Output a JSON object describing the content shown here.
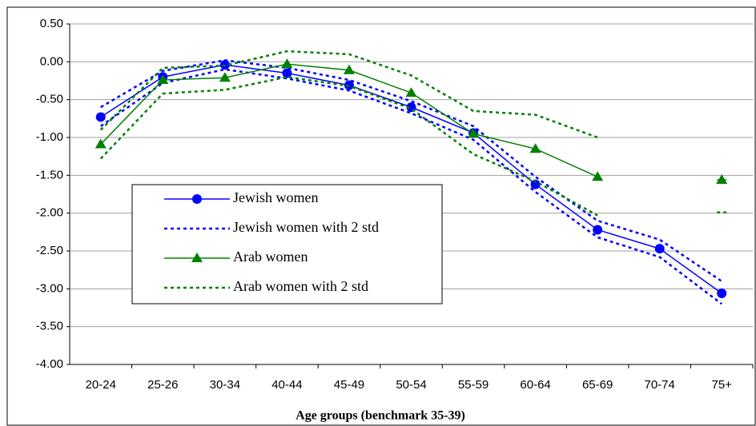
{
  "chart_data": {
    "type": "line",
    "x_label": "Age groups (benchmark 35-39)",
    "categories": [
      "20-24",
      "25-26",
      "30-34",
      "40-44",
      "45-49",
      "50-54",
      "55-59",
      "60-64",
      "65-69",
      "70-74",
      "75+"
    ],
    "series": [
      {
        "name": "Jewish women",
        "color": "#0000ff",
        "marker": "circle",
        "dash": false,
        "values": [
          -0.73,
          -0.2,
          -0.04,
          -0.15,
          -0.31,
          -0.6,
          -0.94,
          -1.62,
          -2.22,
          -2.47,
          -3.06
        ]
      },
      {
        "name": "Jewish women with 2 std",
        "color": "#0000ff",
        "marker": "none",
        "dash": true,
        "values": [
          -0.6,
          -0.12,
          0.02,
          -0.08,
          -0.24,
          -0.52,
          -0.85,
          -1.52,
          -2.1,
          -2.35,
          -2.9
        ]
      },
      {
        "color": "#0000ff",
        "marker": "none",
        "dash": true,
        "values": [
          -0.85,
          -0.28,
          -0.1,
          -0.22,
          -0.38,
          -0.68,
          -1.03,
          -1.72,
          -2.32,
          -2.58,
          -3.2
        ]
      },
      {
        "name": "Arab women",
        "color": "#008000",
        "marker": "triangle",
        "dash": false,
        "values": [
          -1.09,
          -0.24,
          -0.21,
          -0.03,
          -0.11,
          -0.41,
          -0.95,
          -1.15,
          -1.52,
          null,
          -1.56
        ]
      },
      {
        "name": "Arab women with 2 std",
        "color": "#008000",
        "marker": "none",
        "dash": true,
        "values": [
          -0.9,
          -0.08,
          -0.05,
          0.14,
          0.1,
          -0.18,
          -0.65,
          -0.7,
          -1.0,
          null,
          null
        ]
      },
      {
        "color": "#008000",
        "marker": "none",
        "dash": true,
        "values": [
          -1.28,
          -0.42,
          -0.37,
          -0.2,
          -0.32,
          -0.62,
          -1.22,
          -1.58,
          -2.03,
          null,
          -1.99
        ]
      }
    ],
    "ylim": [
      -4,
      0.5
    ],
    "yticks": [
      {
        "value": 0.5,
        "label": "0.50"
      },
      {
        "value": 0,
        "label": "0.00"
      },
      {
        "value": -0.5,
        "label": "-0.50"
      },
      {
        "value": -1,
        "label": "-1.00"
      },
      {
        "value": -1.5,
        "label": "-1.50"
      },
      {
        "value": -2,
        "label": "-2.00"
      },
      {
        "value": -2.5,
        "label": "-2.50"
      },
      {
        "value": -3,
        "label": "-3.00"
      },
      {
        "value": -3.5,
        "label": "-3.50"
      },
      {
        "value": -4,
        "label": "-4.00"
      }
    ],
    "grid": true
  }
}
